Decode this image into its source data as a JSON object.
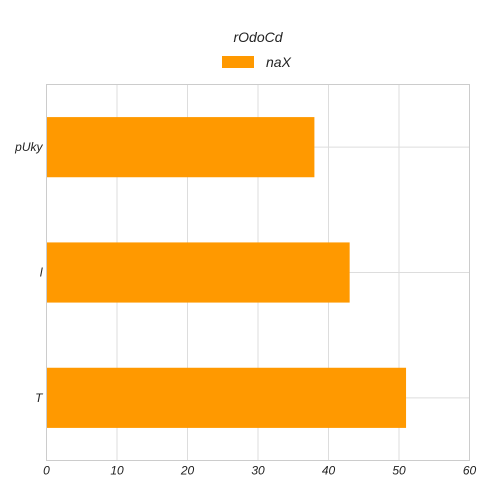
{
  "chart_data": {
    "type": "bar",
    "orientation": "horizontal",
    "title": "rOdoCd",
    "categories": [
      "pUky",
      "l",
      "T"
    ],
    "series": [
      {
        "name": "naX",
        "values": [
          38,
          43,
          51
        ]
      }
    ],
    "xlabel": "",
    "ylabel": "",
    "xlim": [
      0,
      60
    ],
    "xticks": [
      "0",
      "10",
      "20",
      "30",
      "40",
      "50",
      "60"
    ],
    "grid": true,
    "legend_position": "top-center",
    "colors": {
      "bar": "#FF9900",
      "grid": "#DDDDDD",
      "frame": "#CCCCCC"
    }
  }
}
